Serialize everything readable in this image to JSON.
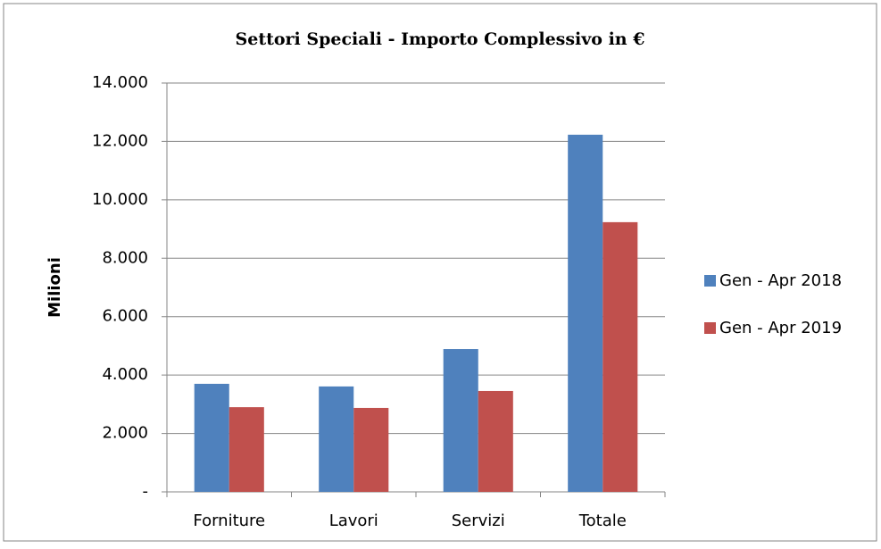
{
  "chart_data": {
    "type": "bar",
    "title": "Settori Speciali - Importo Complessivo in €",
    "y_label": "Milioni",
    "categories": [
      "Forniture",
      "Lavori",
      "Servizi",
      "Totale"
    ],
    "series": [
      {
        "name": "Gen - Apr 2018",
        "color": "#4f81bd",
        "values": [
          3700,
          3610,
          4890,
          12230
        ]
      },
      {
        "name": "Gen - Apr 2019",
        "color": "#c0504d",
        "values": [
          2900,
          2875,
          3455,
          9235
        ]
      }
    ],
    "ylim": [
      0,
      14000
    ],
    "yticks": [
      {
        "value": 0,
        "label": "-"
      },
      {
        "value": 2000,
        "label": "2.000"
      },
      {
        "value": 4000,
        "label": "4.000"
      },
      {
        "value": 6000,
        "label": "6.000"
      },
      {
        "value": 8000,
        "label": "8.000"
      },
      {
        "value": 10000,
        "label": "10.000"
      },
      {
        "value": 12000,
        "label": "12.000"
      },
      {
        "value": 14000,
        "label": "14.000"
      }
    ],
    "grid": true,
    "legend": "right"
  }
}
